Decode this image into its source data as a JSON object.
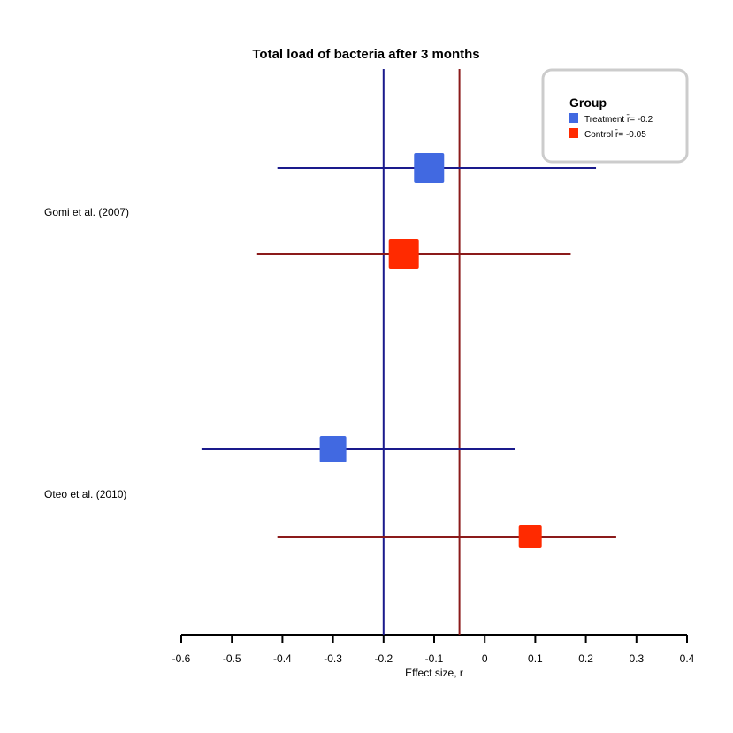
{
  "chart_data": {
    "type": "forest",
    "title": "Total load of bacteria after 3 months",
    "xlabel": "Effect size, r",
    "xlim": [
      -0.6,
      0.4
    ],
    "xticks": [
      "-0.6",
      "-0.5",
      "-0.4",
      "-0.3",
      "-0.2",
      "-0.1",
      "0",
      "0.1",
      "0.2",
      "0.3",
      "0.4"
    ],
    "xtick_values": [
      -0.6,
      -0.5,
      -0.4,
      -0.3,
      -0.2,
      -0.1,
      0,
      0.1,
      0.2,
      0.3,
      0.4
    ],
    "studies": [
      "Gomi et al. (2007)",
      "Oteo et al. (2010)"
    ],
    "legend": {
      "title": "Group",
      "placement": "top-right",
      "entries": [
        "Treatment r̄= -0.2",
        "Control r̄= -0.05"
      ]
    },
    "series": [
      {
        "name": "Treatment",
        "color": "#4169E1",
        "line_color": "#1a1a8c",
        "mean": -0.2,
        "points": [
          {
            "study": "Gomi et al. (2007)",
            "estimate": -0.11,
            "lower": -0.41,
            "upper": 0.22
          },
          {
            "study": "Oteo et al. (2010)",
            "estimate": -0.3,
            "lower": -0.56,
            "upper": 0.06
          }
        ]
      },
      {
        "name": "Control",
        "color": "#FF2A00",
        "line_color": "#8b1a1a",
        "mean": -0.05,
        "points": [
          {
            "study": "Gomi et al. (2007)",
            "estimate": -0.16,
            "lower": -0.45,
            "upper": 0.17
          },
          {
            "study": "Oteo et al. (2010)",
            "estimate": 0.09,
            "lower": -0.41,
            "upper": 0.26
          }
        ]
      }
    ]
  }
}
